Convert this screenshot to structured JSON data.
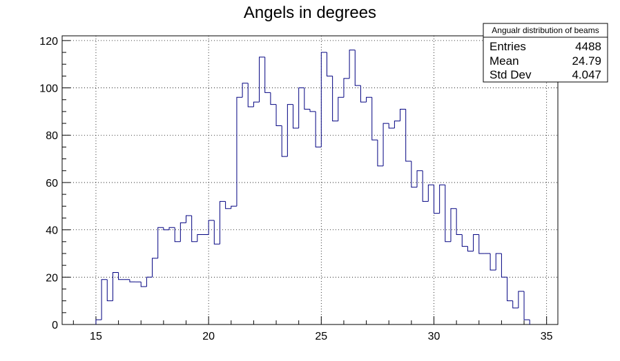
{
  "chart_data": {
    "type": "bar",
    "title": "Angels in degrees",
    "xlabel": "",
    "ylabel": "",
    "xlim": [
      13.5,
      35.5
    ],
    "ylim": [
      0,
      122
    ],
    "x_ticks": [
      15,
      20,
      25,
      30,
      35
    ],
    "y_ticks": [
      0,
      20,
      40,
      60,
      80,
      100,
      120
    ],
    "grid": true,
    "line_color": "#000080",
    "bin_width": 0.25,
    "x_start": 15.0,
    "values": [
      2,
      19,
      10,
      22,
      19,
      19,
      18,
      18,
      16,
      20,
      28,
      41,
      40,
      41,
      35,
      43,
      46,
      35,
      38,
      38,
      44,
      34,
      52,
      49,
      50,
      96,
      102,
      92,
      94,
      113,
      98,
      93,
      84,
      71,
      93,
      83,
      100,
      91,
      90,
      75,
      115,
      105,
      86,
      96,
      104,
      116,
      101,
      94,
      96,
      78,
      67,
      85,
      83,
      86,
      91,
      69,
      58,
      65,
      52,
      59,
      47,
      59,
      35,
      49,
      38,
      33,
      31,
      38,
      30,
      30,
      23,
      30,
      20,
      10,
      7,
      14,
      2
    ],
    "stats_box": {
      "title": "Angualr distribution of beams",
      "position": "top-right",
      "rows": [
        {
          "label": "Entries",
          "value": "4488"
        },
        {
          "label": "Mean",
          "value": "24.79"
        },
        {
          "label": "Std Dev",
          "value": "4.047"
        }
      ]
    }
  }
}
